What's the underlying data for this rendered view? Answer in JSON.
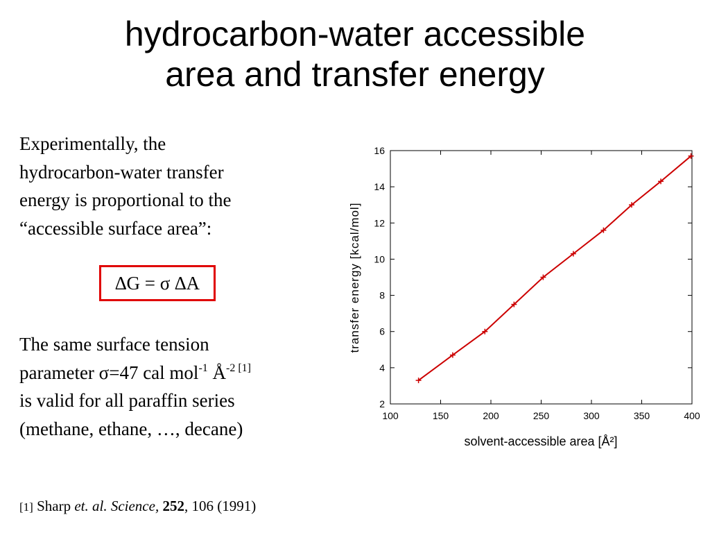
{
  "slide": {
    "title_line1": "hydrocarbon-water accessible",
    "title_line2": "area and transfer energy",
    "intro_lines": [
      "Experimentally, the",
      "hydrocarbon-water transfer",
      "energy is proportional to the",
      "“accessible surface area”:"
    ],
    "equation": "∆G = σ ∆A",
    "tension": {
      "line1": "The same surface tension",
      "line2_pre": "parameter σ=47 cal mol",
      "exp1": "-1",
      "unit": " Å",
      "exp2": "-2 [1]",
      "line3": "is valid for all paraffin series",
      "line4": "(methane, ethane, …, decane)"
    },
    "footnote": {
      "ref": "[1]",
      "author": " Sharp ",
      "etal": "et. al.",
      "sep1": " ",
      "journal": "Science,",
      "sep2": " ",
      "volume": "252",
      "rest": ", 106 (1991)"
    }
  },
  "chart_data": {
    "type": "line",
    "xlabel": "solvent-accessible area [Å²]",
    "ylabel": "transfer energy [kcal/mol]",
    "xlim": [
      100,
      400
    ],
    "ylim": [
      2,
      16
    ],
    "xticks": [
      100,
      150,
      200,
      250,
      300,
      350,
      400
    ],
    "yticks": [
      2,
      4,
      6,
      8,
      10,
      12,
      14,
      16
    ],
    "line_color": "#cc0000",
    "x": [
      128,
      162,
      194,
      223,
      252,
      282,
      312,
      340,
      369,
      399
    ],
    "y": [
      3.3,
      4.7,
      6.0,
      7.5,
      9.0,
      10.3,
      11.6,
      13.0,
      14.3,
      15.7
    ]
  }
}
